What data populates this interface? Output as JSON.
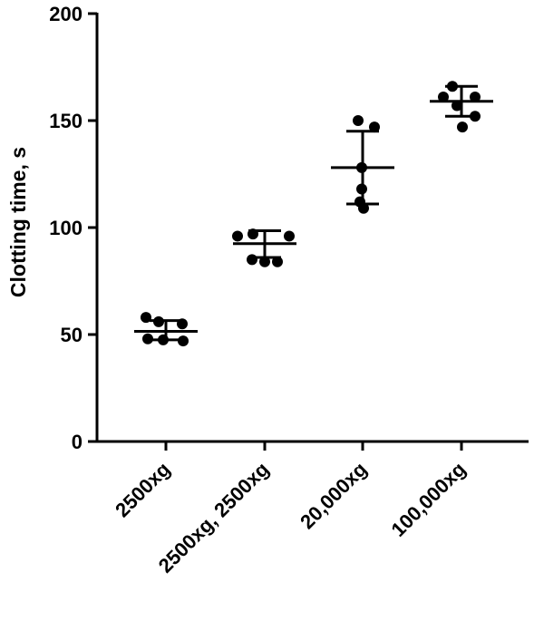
{
  "chart_data": {
    "type": "scatter",
    "ylabel": "Clotting time, s",
    "xlabel": "",
    "ylim": [
      0,
      200
    ],
    "yticks": [
      0,
      50,
      100,
      150,
      200
    ],
    "categories": [
      "2500xg",
      "2500xg, 2500xg",
      "20,000xg",
      "100,000xg"
    ],
    "groups": [
      {
        "category": "2500xg",
        "mean": 51.5,
        "sd_low": 47.5,
        "sd_high": 56.5,
        "points": [
          58,
          56,
          55,
          48,
          47.5,
          47
        ]
      },
      {
        "category": "2500xg, 2500xg",
        "mean": 92.5,
        "sd_low": 86,
        "sd_high": 98.5,
        "points": [
          96,
          97,
          96,
          85,
          84,
          84
        ]
      },
      {
        "category": "20,000xg",
        "mean": 128,
        "sd_low": 111,
        "sd_high": 145,
        "points": [
          150,
          147,
          128,
          118,
          112,
          109
        ]
      },
      {
        "category": "100,000xg",
        "mean": 159,
        "sd_low": 152,
        "sd_high": 166,
        "points": [
          166,
          161,
          161,
          157,
          152,
          147
        ]
      }
    ],
    "error_bars": "SD",
    "color": "#000000"
  }
}
